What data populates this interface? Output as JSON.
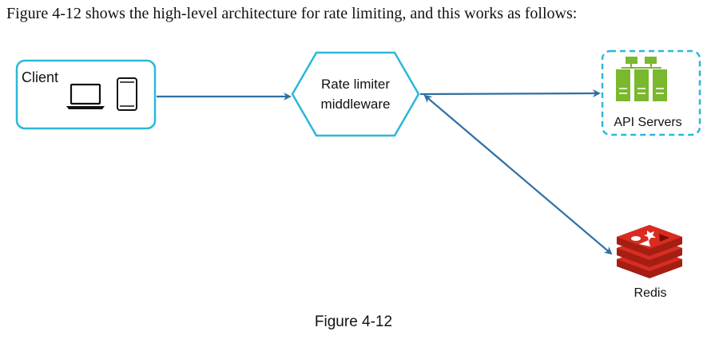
{
  "intro_text": "Figure 4-12 shows the high-level architecture for rate limiting, and this works as follows:",
  "diagram": {
    "client": {
      "label": "Client",
      "icons": [
        "laptop-icon",
        "phone-icon"
      ]
    },
    "rate_limiter": {
      "label_line1": "Rate limiter",
      "label_line2": "middleware"
    },
    "api_servers": {
      "label": "API Servers",
      "icon": "server-rack-icon"
    },
    "redis": {
      "label": "Redis",
      "icon": "redis-logo-icon"
    },
    "connections": [
      {
        "from": "client",
        "to": "rate_limiter",
        "direction": "one-way"
      },
      {
        "from": "rate_limiter",
        "to": "api_servers",
        "direction": "one-way"
      },
      {
        "from": "rate_limiter",
        "to": "redis",
        "direction": "two-way"
      }
    ],
    "colors": {
      "accent": "#2bb7da",
      "arrow": "#2f6fa3",
      "server_green": "#7ab82e",
      "redis_red": "#d62d24"
    }
  },
  "caption": "Figure 4-12"
}
